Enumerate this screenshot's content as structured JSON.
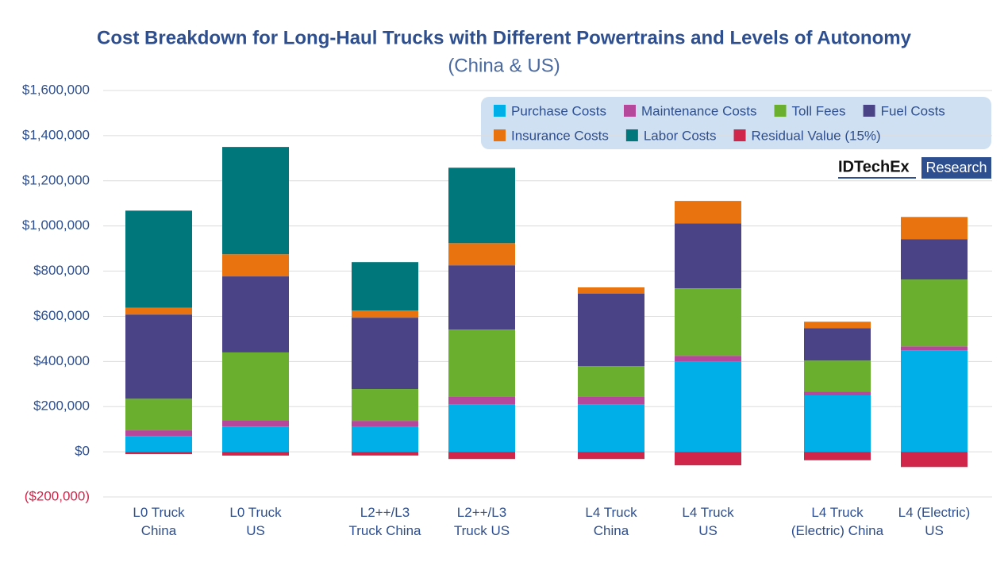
{
  "chart_data": {
    "type": "stacked_bar",
    "title": "Cost Breakdown for Long-Haul Trucks with Different Powertrains and Levels of Autonomy",
    "subtitle": "(China & US)",
    "logo": {
      "name": "IDTechEx",
      "tag": "Research"
    },
    "categories": [
      "L0 Truck\nChina",
      "L0 Truck\nUS",
      "L2++/L3\nTruck China",
      "L2++/L3\nTruck US",
      "L4 Truck\nChina",
      "L4 Truck\nUS",
      "L4 Truck\n(Electric) China",
      "L4 (Electric)\nUS"
    ],
    "series": [
      {
        "name": "Purchase Costs",
        "color": "#00aee8",
        "values": [
          70000,
          112000,
          110000,
          211000,
          211000,
          400000,
          250000,
          450000
        ]
      },
      {
        "name": "Maintenance Costs",
        "color": "#b5489b",
        "values": [
          25000,
          28000,
          27000,
          32000,
          32000,
          25000,
          17000,
          17000
        ]
      },
      {
        "name": "Toll Fees",
        "color": "#6aaf2e",
        "values": [
          140000,
          300000,
          141000,
          298000,
          137000,
          299000,
          137000,
          296000
        ]
      },
      {
        "name": "Fuel Costs",
        "color": "#4a4487",
        "values": [
          373000,
          337000,
          316000,
          285000,
          320000,
          288000,
          144000,
          179000
        ]
      },
      {
        "name": "Insurance Costs",
        "color": "#e8730f",
        "values": [
          30000,
          98000,
          32000,
          98000,
          28000,
          99000,
          28000,
          98000
        ]
      },
      {
        "name": "Labor Costs",
        "color": "#00777a",
        "values": [
          430000,
          475000,
          214000,
          334000,
          0,
          0,
          0,
          0
        ]
      },
      {
        "name": "Residual Value (15%)",
        "color": "#d0264a",
        "values": [
          -10500,
          -16800,
          -16500,
          -32000,
          -32000,
          -60000,
          -37500,
          -67500
        ]
      }
    ],
    "ylim": [
      -200000,
      1600000
    ],
    "yticks": [
      {
        "value": -200000,
        "label": "($200,000)"
      },
      {
        "value": 0,
        "label": "$0"
      },
      {
        "value": 200000,
        "label": "$200,000"
      },
      {
        "value": 400000,
        "label": "$400,000"
      },
      {
        "value": 600000,
        "label": "$600,000"
      },
      {
        "value": 800000,
        "label": "$800,000"
      },
      {
        "value": 1000000,
        "label": "$1,000,000"
      },
      {
        "value": 1200000,
        "label": "$1,200,000"
      },
      {
        "value": 1400000,
        "label": "$1,400,000"
      },
      {
        "value": 1600000,
        "label": "$1,600,000"
      }
    ],
    "grid": true
  }
}
